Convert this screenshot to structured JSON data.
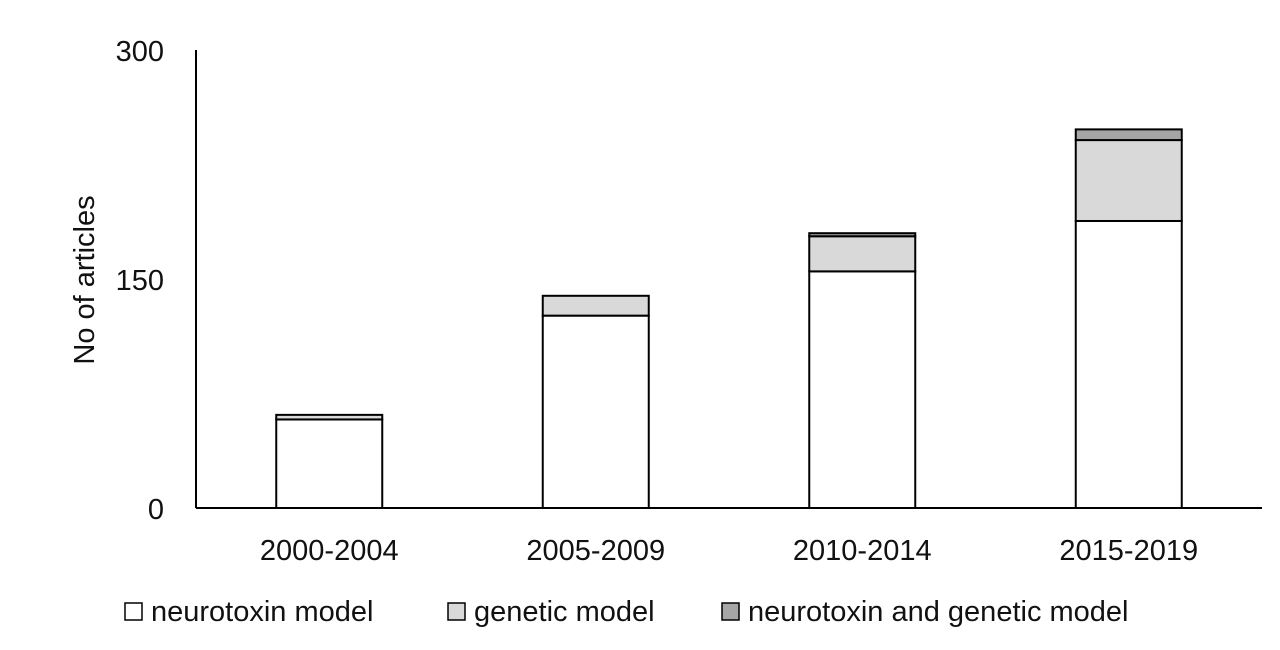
{
  "chart_data": {
    "type": "bar",
    "stacked": true,
    "categories": [
      "2000-2004",
      "2005-2009",
      "2010-2014",
      "2015-2019"
    ],
    "series": [
      {
        "name": "neurotoxin model",
        "values": [
          58,
          126,
          155,
          188
        ],
        "color": "#ffffff"
      },
      {
        "name": "genetic model",
        "values": [
          3,
          13,
          23,
          53
        ],
        "color": "#d9d9d9"
      },
      {
        "name": "neurotoxin and genetic model",
        "values": [
          0,
          0,
          2,
          7
        ],
        "color": "#a6a6a6"
      }
    ],
    "title": "",
    "xlabel": "",
    "ylabel": "No of articles",
    "ylim": [
      0,
      300
    ],
    "yticks": [
      "0",
      "150",
      "300"
    ],
    "grid": false,
    "legend_position": "bottom"
  }
}
